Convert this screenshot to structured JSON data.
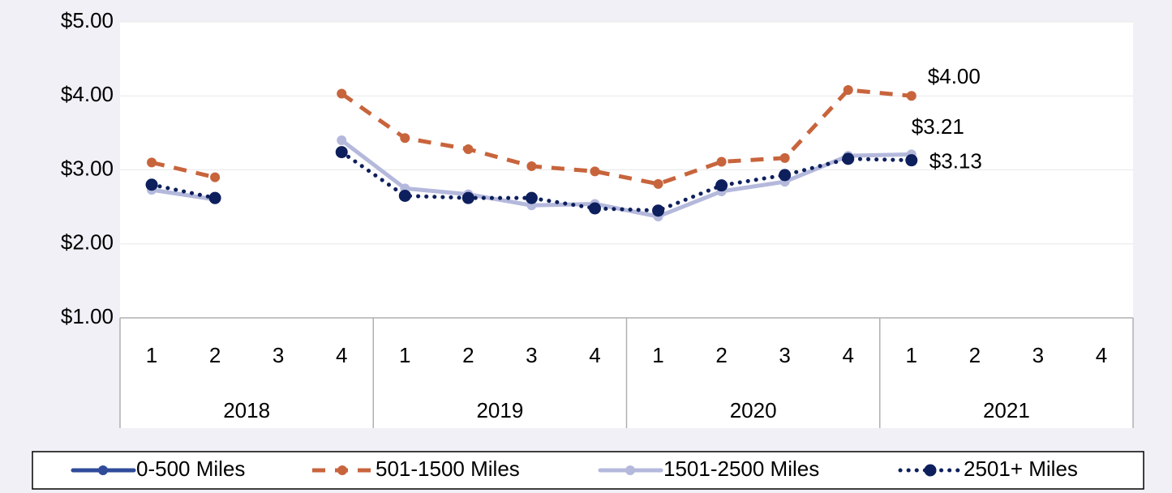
{
  "chart_data": {
    "type": "line",
    "categories": [
      "1",
      "2",
      "3",
      "4",
      "1",
      "2",
      "3",
      "4",
      "1",
      "2",
      "3",
      "4",
      "1",
      "2",
      "3",
      "4"
    ],
    "groups": [
      "2018",
      "2019",
      "2020",
      "2021"
    ],
    "ylim": [
      1,
      5
    ],
    "yticks": [
      {
        "value": 1,
        "label": "$1.00"
      },
      {
        "value": 2,
        "label": "$2.00"
      },
      {
        "value": 3,
        "label": "$3.00"
      },
      {
        "value": 4,
        "label": "$4.00"
      },
      {
        "value": 5,
        "label": "$5.00"
      }
    ],
    "grid": true,
    "legend": "bottom",
    "series": [
      {
        "name": "0-500 Miles",
        "color": "#2f4b9a",
        "style": "solid",
        "values": [
          null,
          null,
          null,
          null,
          null,
          null,
          null,
          null,
          null,
          null,
          null,
          null,
          null,
          null,
          null,
          null
        ]
      },
      {
        "name": "501-1500 Miles",
        "color": "#c8643c",
        "style": "dashed",
        "values": [
          3.1,
          2.9,
          null,
          4.03,
          3.43,
          3.28,
          3.05,
          2.98,
          2.81,
          3.11,
          3.16,
          4.08,
          4.0,
          null,
          null,
          null
        ],
        "value_labels": [
          null,
          null,
          null,
          null,
          null,
          null,
          null,
          null,
          null,
          null,
          null,
          null,
          "$4.00",
          null,
          null,
          null
        ]
      },
      {
        "name": "1501-2500 Miles",
        "color": "#b4b9dc",
        "style": "solid",
        "values": [
          2.73,
          2.6,
          null,
          3.4,
          2.75,
          2.67,
          2.52,
          2.54,
          2.37,
          2.71,
          2.84,
          3.19,
          3.21,
          null,
          null,
          null
        ],
        "value_labels": [
          null,
          null,
          null,
          null,
          null,
          null,
          null,
          null,
          null,
          null,
          null,
          null,
          "$3.21",
          null,
          null,
          null
        ]
      },
      {
        "name": "2501+ Miles",
        "color": "#0d1f5c",
        "style": "dotted",
        "values": [
          2.8,
          2.62,
          null,
          3.24,
          2.65,
          2.62,
          2.62,
          2.48,
          2.45,
          2.79,
          2.93,
          3.15,
          3.13,
          null,
          null,
          null
        ],
        "value_labels": [
          null,
          null,
          null,
          null,
          null,
          null,
          null,
          null,
          null,
          null,
          null,
          null,
          "$3.13",
          null,
          null,
          null
        ]
      }
    ]
  }
}
